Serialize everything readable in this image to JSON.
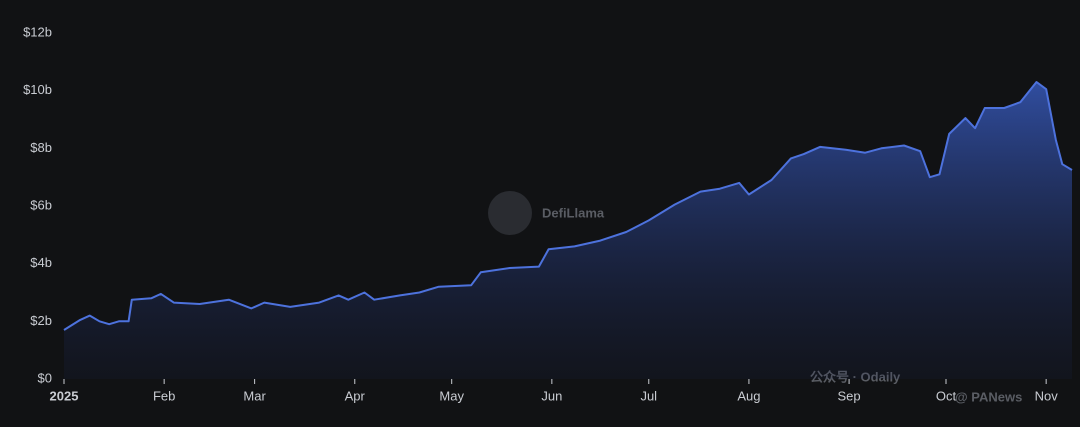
{
  "chart_data": {
    "type": "area",
    "color": "#4d72dd",
    "x": [
      0,
      5,
      8,
      11,
      14,
      17,
      20,
      21,
      27,
      30,
      34,
      42,
      51,
      58,
      62,
      70,
      79,
      85,
      88,
      93,
      96,
      104,
      110,
      116,
      126,
      129,
      138,
      147,
      150,
      158,
      166,
      174,
      181,
      189,
      197,
      203,
      209,
      212,
      219,
      225,
      229,
      234,
      242,
      248,
      253,
      260,
      265,
      268,
      271,
      274,
      279,
      282,
      285,
      291,
      296,
      301,
      304,
      307,
      309,
      312
    ],
    "values": [
      1.7,
      2.05,
      2.2,
      2.0,
      1.9,
      2.0,
      2.0,
      2.75,
      2.8,
      2.95,
      2.65,
      2.6,
      2.75,
      2.45,
      2.65,
      2.5,
      2.65,
      2.9,
      2.75,
      3.0,
      2.75,
      2.9,
      3.0,
      3.2,
      3.25,
      3.7,
      3.85,
      3.9,
      4.5,
      4.6,
      4.8,
      5.1,
      5.5,
      6.05,
      6.5,
      6.6,
      6.8,
      6.4,
      6.9,
      7.65,
      7.8,
      8.05,
      7.95,
      7.85,
      8.0,
      8.1,
      7.9,
      7.0,
      7.1,
      8.5,
      9.05,
      8.7,
      9.4,
      9.4,
      9.6,
      10.3,
      10.05,
      8.3,
      7.45,
      7.25
    ],
    "xlim": [
      0,
      312
    ],
    "xticks": [
      {
        "value": 0,
        "label": "2025"
      },
      {
        "value": 31,
        "label": "Feb"
      },
      {
        "value": 59,
        "label": "Mar"
      },
      {
        "value": 90,
        "label": "Apr"
      },
      {
        "value": 120,
        "label": "May"
      },
      {
        "value": 151,
        "label": "Jun"
      },
      {
        "value": 181,
        "label": "Jul"
      },
      {
        "value": 212,
        "label": "Aug"
      },
      {
        "value": 243,
        "label": "Sep"
      },
      {
        "value": 273,
        "label": "Oct"
      },
      {
        "value": 304,
        "label": "Nov"
      }
    ],
    "ylim": [
      0,
      12
    ],
    "yticks": [
      {
        "value": 0,
        "label": "$0"
      },
      {
        "value": 2,
        "label": "$2b"
      },
      {
        "value": 4,
        "label": "$4b"
      },
      {
        "value": 6,
        "label": "$6b"
      },
      {
        "value": 8,
        "label": "$8b"
      },
      {
        "value": 10,
        "label": "$10b"
      },
      {
        "value": 12,
        "label": "$12b"
      }
    ],
    "annotations": [
      "DefiLlama",
      "公众号 · Odaily",
      "@ PANews"
    ]
  }
}
